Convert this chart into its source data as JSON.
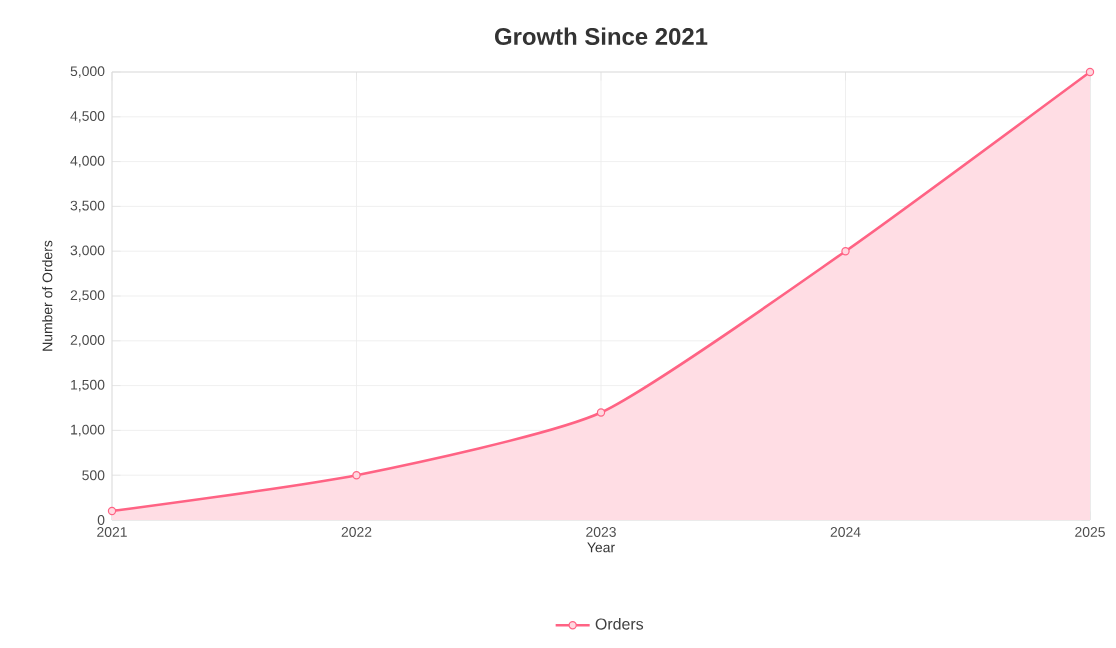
{
  "chart_data": {
    "type": "area",
    "title": "Growth Since 2021",
    "xlabel": "Year",
    "ylabel": "Number of Orders",
    "x": [
      2021,
      2022,
      2023,
      2024,
      2025
    ],
    "series": [
      {
        "name": "Orders",
        "color": "#ff6384",
        "values": [
          100,
          500,
          1200,
          3000,
          5000
        ]
      }
    ],
    "xlim": [
      2021,
      2025
    ],
    "xticks": [
      2021,
      2022,
      2023,
      2024,
      2025
    ],
    "ylim": [
      0,
      5000
    ],
    "yticks": [
      0,
      500,
      {
        "value": 1000,
        "label": "1,000"
      },
      {
        "value": 1500,
        "label": "1,500"
      },
      {
        "value": 2000,
        "label": "2,000"
      },
      {
        "value": 2500,
        "label": "2,500"
      },
      {
        "value": 3000,
        "label": "3,000"
      },
      {
        "value": 3500,
        "label": "3,500"
      },
      {
        "value": 4000,
        "label": "4,000"
      },
      {
        "value": 4500,
        "label": "4,500"
      },
      {
        "value": 5000,
        "label": "5,000"
      }
    ],
    "grid": true,
    "legend": "bottom",
    "marker": "circle",
    "line_style": "solid"
  }
}
